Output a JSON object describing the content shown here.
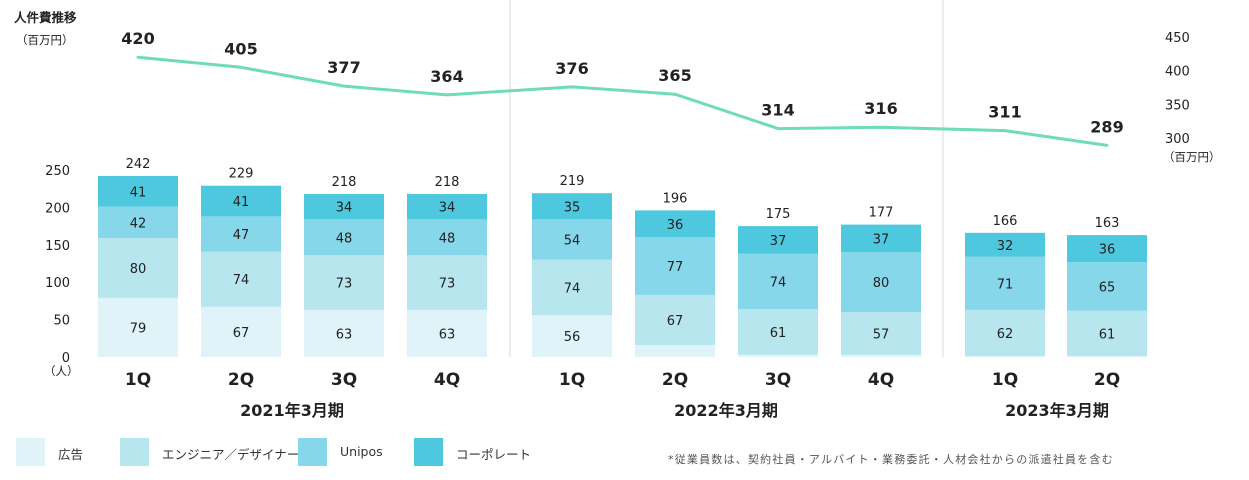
{
  "chart_data": {
    "type": "bar",
    "subtype": "stacked-bar-with-line",
    "left_axis_title": "人件費推移",
    "left_axis_unit": "（百万円）",
    "bar_axis_unit": "（人）",
    "right_axis_unit": "（百万円）",
    "bar_axis_ticks": [
      "0",
      "50",
      "100",
      "150",
      "200",
      "250"
    ],
    "bar_ylim": [
      0,
      250
    ],
    "right_axis_ticks": [
      "300",
      "350",
      "400",
      "450"
    ],
    "line_ylim": [
      300,
      450
    ],
    "grid": false,
    "legend_position": "bottom-left",
    "groups": [
      {
        "label": "2021年3月期",
        "quarters": [
          "1Q",
          "2Q",
          "3Q",
          "4Q"
        ]
      },
      {
        "label": "2022年3月期",
        "quarters": [
          "1Q",
          "2Q",
          "3Q",
          "4Q"
        ]
      },
      {
        "label": "2023年3月期",
        "quarters": [
          "1Q",
          "2Q"
        ]
      }
    ],
    "categories": [
      "2021年3月期 1Q",
      "2021年3月期 2Q",
      "2021年3月期 3Q",
      "2021年3月期 4Q",
      "2022年3月期 1Q",
      "2022年3月期 2Q",
      "2022年3月期 3Q",
      "2022年3月期 4Q",
      "2023年3月期 1Q",
      "2023年3月期 2Q"
    ],
    "series": [
      {
        "name": "広告",
        "color": "#dff3f8",
        "values": [
          79,
          67,
          63,
          63,
          56,
          16,
          3,
          3,
          1,
          1
        ]
      },
      {
        "name": "エンジニア／デザイナー",
        "color": "#b8e6ef",
        "values": [
          80,
          74,
          73,
          73,
          74,
          67,
          61,
          57,
          62,
          61
        ]
      },
      {
        "name": "Unipos",
        "color": "#86d7e9",
        "values": [
          42,
          47,
          48,
          48,
          54,
          77,
          74,
          80,
          71,
          65
        ]
      },
      {
        "name": "コーポレート",
        "color": "#4ec8df",
        "values": [
          41,
          41,
          34,
          34,
          35,
          36,
          37,
          37,
          32,
          36
        ]
      }
    ],
    "totals": [
      242,
      229,
      218,
      218,
      219,
      196,
      175,
      177,
      166,
      163
    ],
    "line": {
      "color": "#6fdcb4",
      "values": [
        420,
        405,
        377,
        364,
        376,
        365,
        314,
        316,
        311,
        289
      ]
    }
  },
  "legend": [
    {
      "label": "広告",
      "color": "#dff3f8"
    },
    {
      "label": "エンジニア／デザイナー",
      "color": "#b8e6ef"
    },
    {
      "label": "Unipos",
      "color": "#86d7e9"
    },
    {
      "label": "コーポレート",
      "color": "#4ec8df"
    }
  ],
  "footnote": "*従業員数は、契約社員・アルバイト・業務委託・人材会社からの派遣社員を含む"
}
